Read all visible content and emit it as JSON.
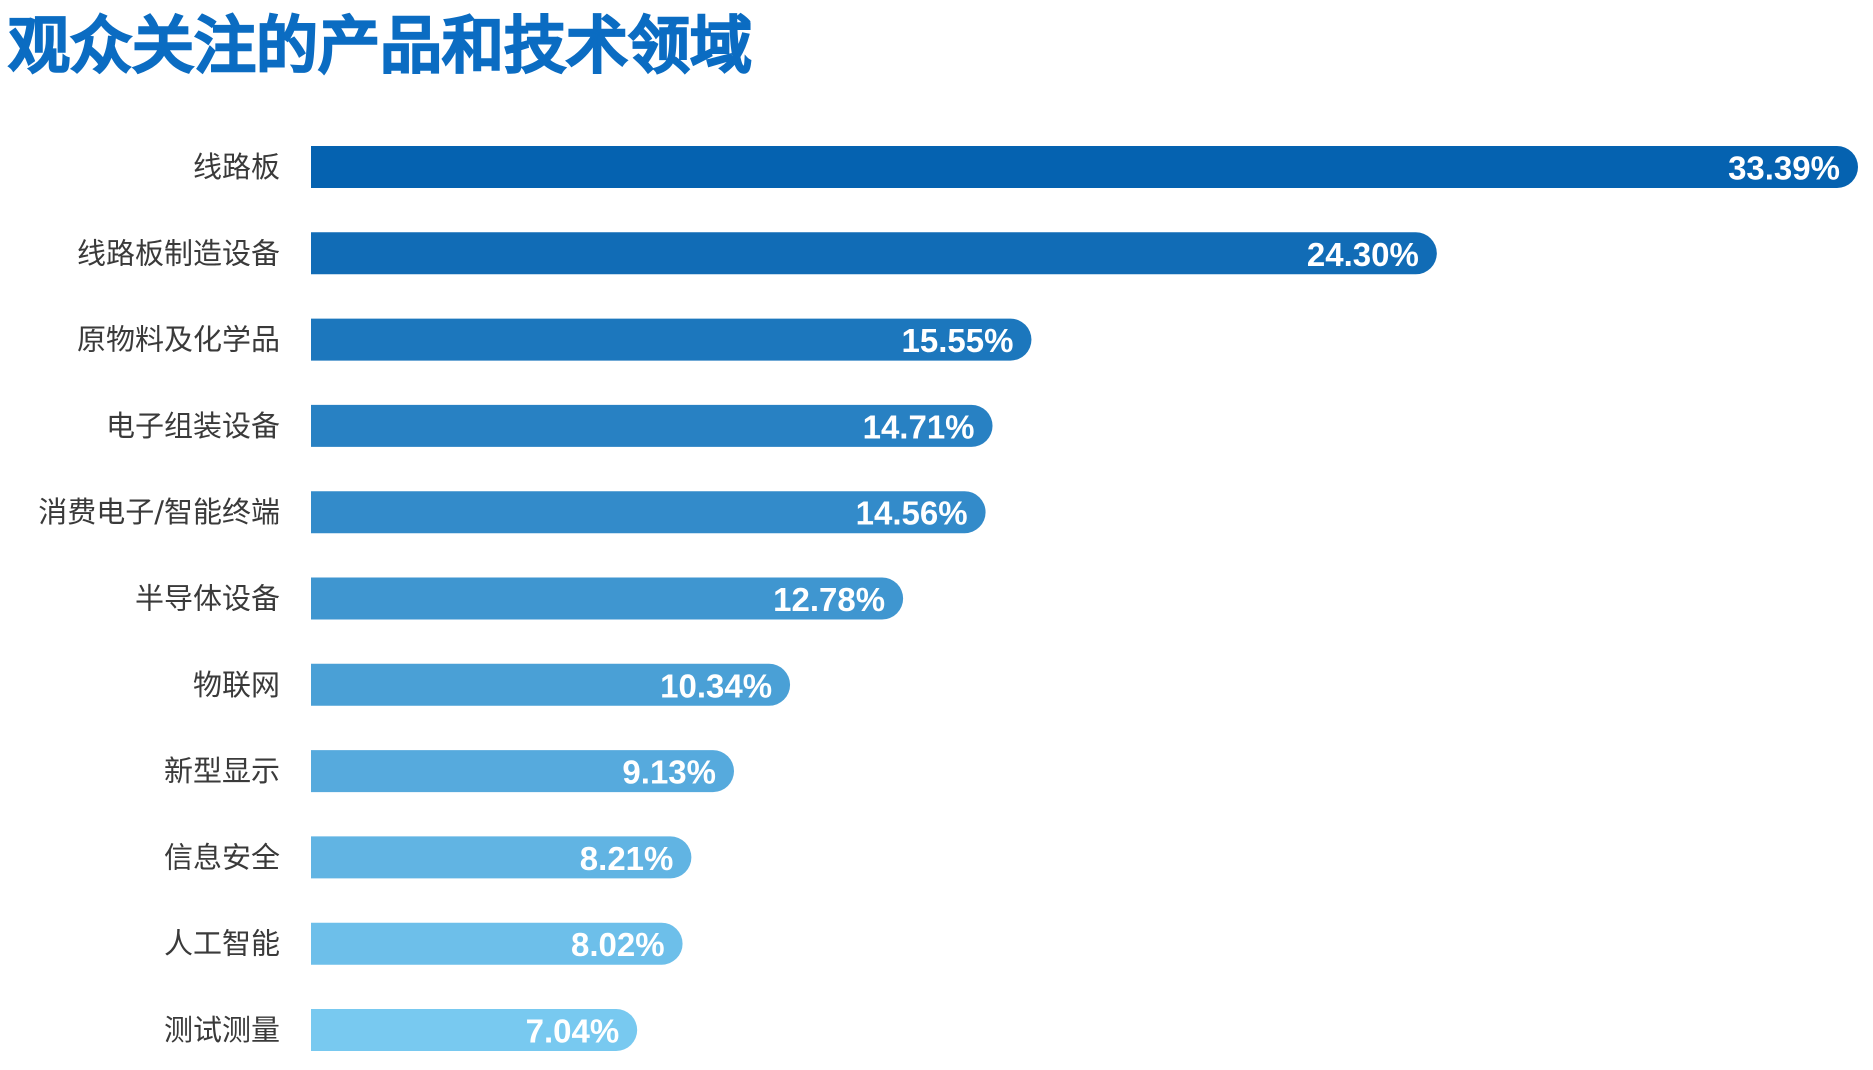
{
  "chart_data": {
    "type": "bar",
    "orientation": "horizontal",
    "title": "观众关注的产品和技术领域",
    "categories": [
      "线路板",
      "线路板制造设备",
      "原物料及化学品",
      "电子组装设备",
      "消费电子/智能终端",
      "半导体设备",
      "物联网",
      "新型显示",
      "信息安全",
      "人工智能",
      "测试测量"
    ],
    "values": [
      33.39,
      24.3,
      15.55,
      14.71,
      14.56,
      12.78,
      10.34,
      9.13,
      8.21,
      8.02,
      7.04
    ],
    "value_labels": [
      "33.39%",
      "24.30%",
      "15.55%",
      "14.71%",
      "14.56%",
      "12.78%",
      "10.34%",
      "9.13%",
      "8.21%",
      "8.02%",
      "7.04%"
    ],
    "unit": "%",
    "xlabel": "",
    "ylabel": "",
    "grid": false,
    "legend": "none",
    "colors": {
      "title": "#0b6cc2",
      "bar_darkest": "#0562b0",
      "bar_lightest": "#78c9f0",
      "category_text": "#3a3a3a",
      "value_text": "#ffffff"
    }
  }
}
